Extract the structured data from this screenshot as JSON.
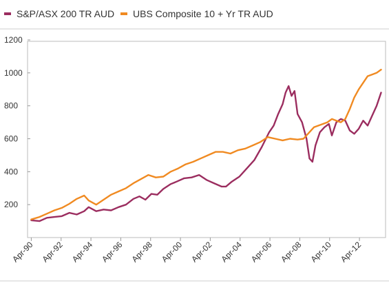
{
  "chart_data": {
    "type": "line",
    "title": "",
    "xlabel": "",
    "ylabel": "",
    "legend_position": "top-left",
    "grid": false,
    "xlim": [
      1990.0,
      2014.0
    ],
    "ylim": [
      0,
      1200
    ],
    "y_ticks": [
      200,
      400,
      600,
      800,
      1000,
      1200
    ],
    "x_ticks": [
      {
        "value": 1990.25,
        "label": "Apr-90"
      },
      {
        "value": 1992.25,
        "label": "Apr-92"
      },
      {
        "value": 1994.25,
        "label": "Apr-94"
      },
      {
        "value": 1996.25,
        "label": "Apr-96"
      },
      {
        "value": 1998.25,
        "label": "Apr-98"
      },
      {
        "value": 2000.25,
        "label": "Apr-00"
      },
      {
        "value": 2002.25,
        "label": "Apr-02"
      },
      {
        "value": 2004.25,
        "label": "Apr-04"
      },
      {
        "value": 2006.25,
        "label": "Apr-06"
      },
      {
        "value": 2008.25,
        "label": "Apr-08"
      },
      {
        "value": 2010.25,
        "label": "Apr-10"
      },
      {
        "value": 2012.25,
        "label": "Apr-12"
      }
    ],
    "series": [
      {
        "name": "S&P/ASX 200 TR AUD",
        "color": "#9b2d5f",
        "x": [
          1990.25,
          1990.8,
          1991.3,
          1991.8,
          1992.3,
          1992.8,
          1993.3,
          1993.8,
          1994.1,
          1994.6,
          1995.1,
          1995.6,
          1996.1,
          1996.6,
          1997.1,
          1997.5,
          1997.9,
          1998.3,
          1998.7,
          1999.1,
          1999.6,
          2000.0,
          2000.5,
          2001.0,
          2001.5,
          2002.0,
          2002.5,
          2003.0,
          2003.3,
          2003.7,
          2004.2,
          2004.7,
          2005.2,
          2005.7,
          2006.2,
          2006.5,
          2006.8,
          2007.1,
          2007.3,
          2007.5,
          2007.7,
          2007.9,
          2008.1,
          2008.4,
          2008.7,
          2008.9,
          2009.1,
          2009.3,
          2009.6,
          2009.9,
          2010.2,
          2010.4,
          2010.7,
          2011.0,
          2011.3,
          2011.6,
          2011.9,
          2012.2,
          2012.5,
          2012.8,
          2013.1,
          2013.4,
          2013.7
        ],
        "values": [
          105,
          100,
          120,
          125,
          130,
          150,
          140,
          160,
          185,
          160,
          170,
          165,
          185,
          200,
          235,
          250,
          230,
          265,
          260,
          295,
          325,
          340,
          360,
          365,
          380,
          350,
          330,
          310,
          310,
          340,
          370,
          420,
          470,
          550,
          640,
          680,
          750,
          810,
          880,
          920,
          860,
          890,
          750,
          700,
          600,
          480,
          460,
          560,
          640,
          670,
          690,
          620,
          700,
          720,
          710,
          650,
          630,
          660,
          710,
          680,
          740,
          800,
          880
        ]
      },
      {
        "name": "UBS Composite 10 + Yr TR AUD",
        "color": "#f08a21",
        "x": [
          1990.25,
          1990.8,
          1991.3,
          1991.8,
          1992.3,
          1992.8,
          1993.3,
          1993.8,
          1994.1,
          1994.6,
          1995.1,
          1995.6,
          1996.1,
          1996.6,
          1997.1,
          1997.6,
          1998.1,
          1998.6,
          1999.1,
          1999.6,
          2000.1,
          2000.6,
          2001.1,
          2001.6,
          2002.1,
          2002.6,
          2003.1,
          2003.6,
          2004.1,
          2004.6,
          2005.1,
          2005.6,
          2006.1,
          2006.6,
          2007.1,
          2007.6,
          2008.1,
          2008.5,
          2008.9,
          2009.2,
          2009.5,
          2009.8,
          2010.1,
          2010.4,
          2010.7,
          2011.0,
          2011.3,
          2011.6,
          2011.9,
          2012.2,
          2012.5,
          2012.8,
          2013.1,
          2013.4,
          2013.7
        ],
        "values": [
          110,
          125,
          145,
          165,
          180,
          205,
          235,
          255,
          225,
          200,
          230,
          260,
          280,
          300,
          330,
          355,
          380,
          365,
          370,
          400,
          420,
          445,
          460,
          480,
          500,
          520,
          520,
          510,
          530,
          540,
          560,
          580,
          610,
          600,
          590,
          600,
          595,
          600,
          640,
          670,
          680,
          690,
          700,
          720,
          710,
          700,
          720,
          780,
          850,
          900,
          940,
          980,
          990,
          1000,
          1020
        ]
      }
    ]
  }
}
